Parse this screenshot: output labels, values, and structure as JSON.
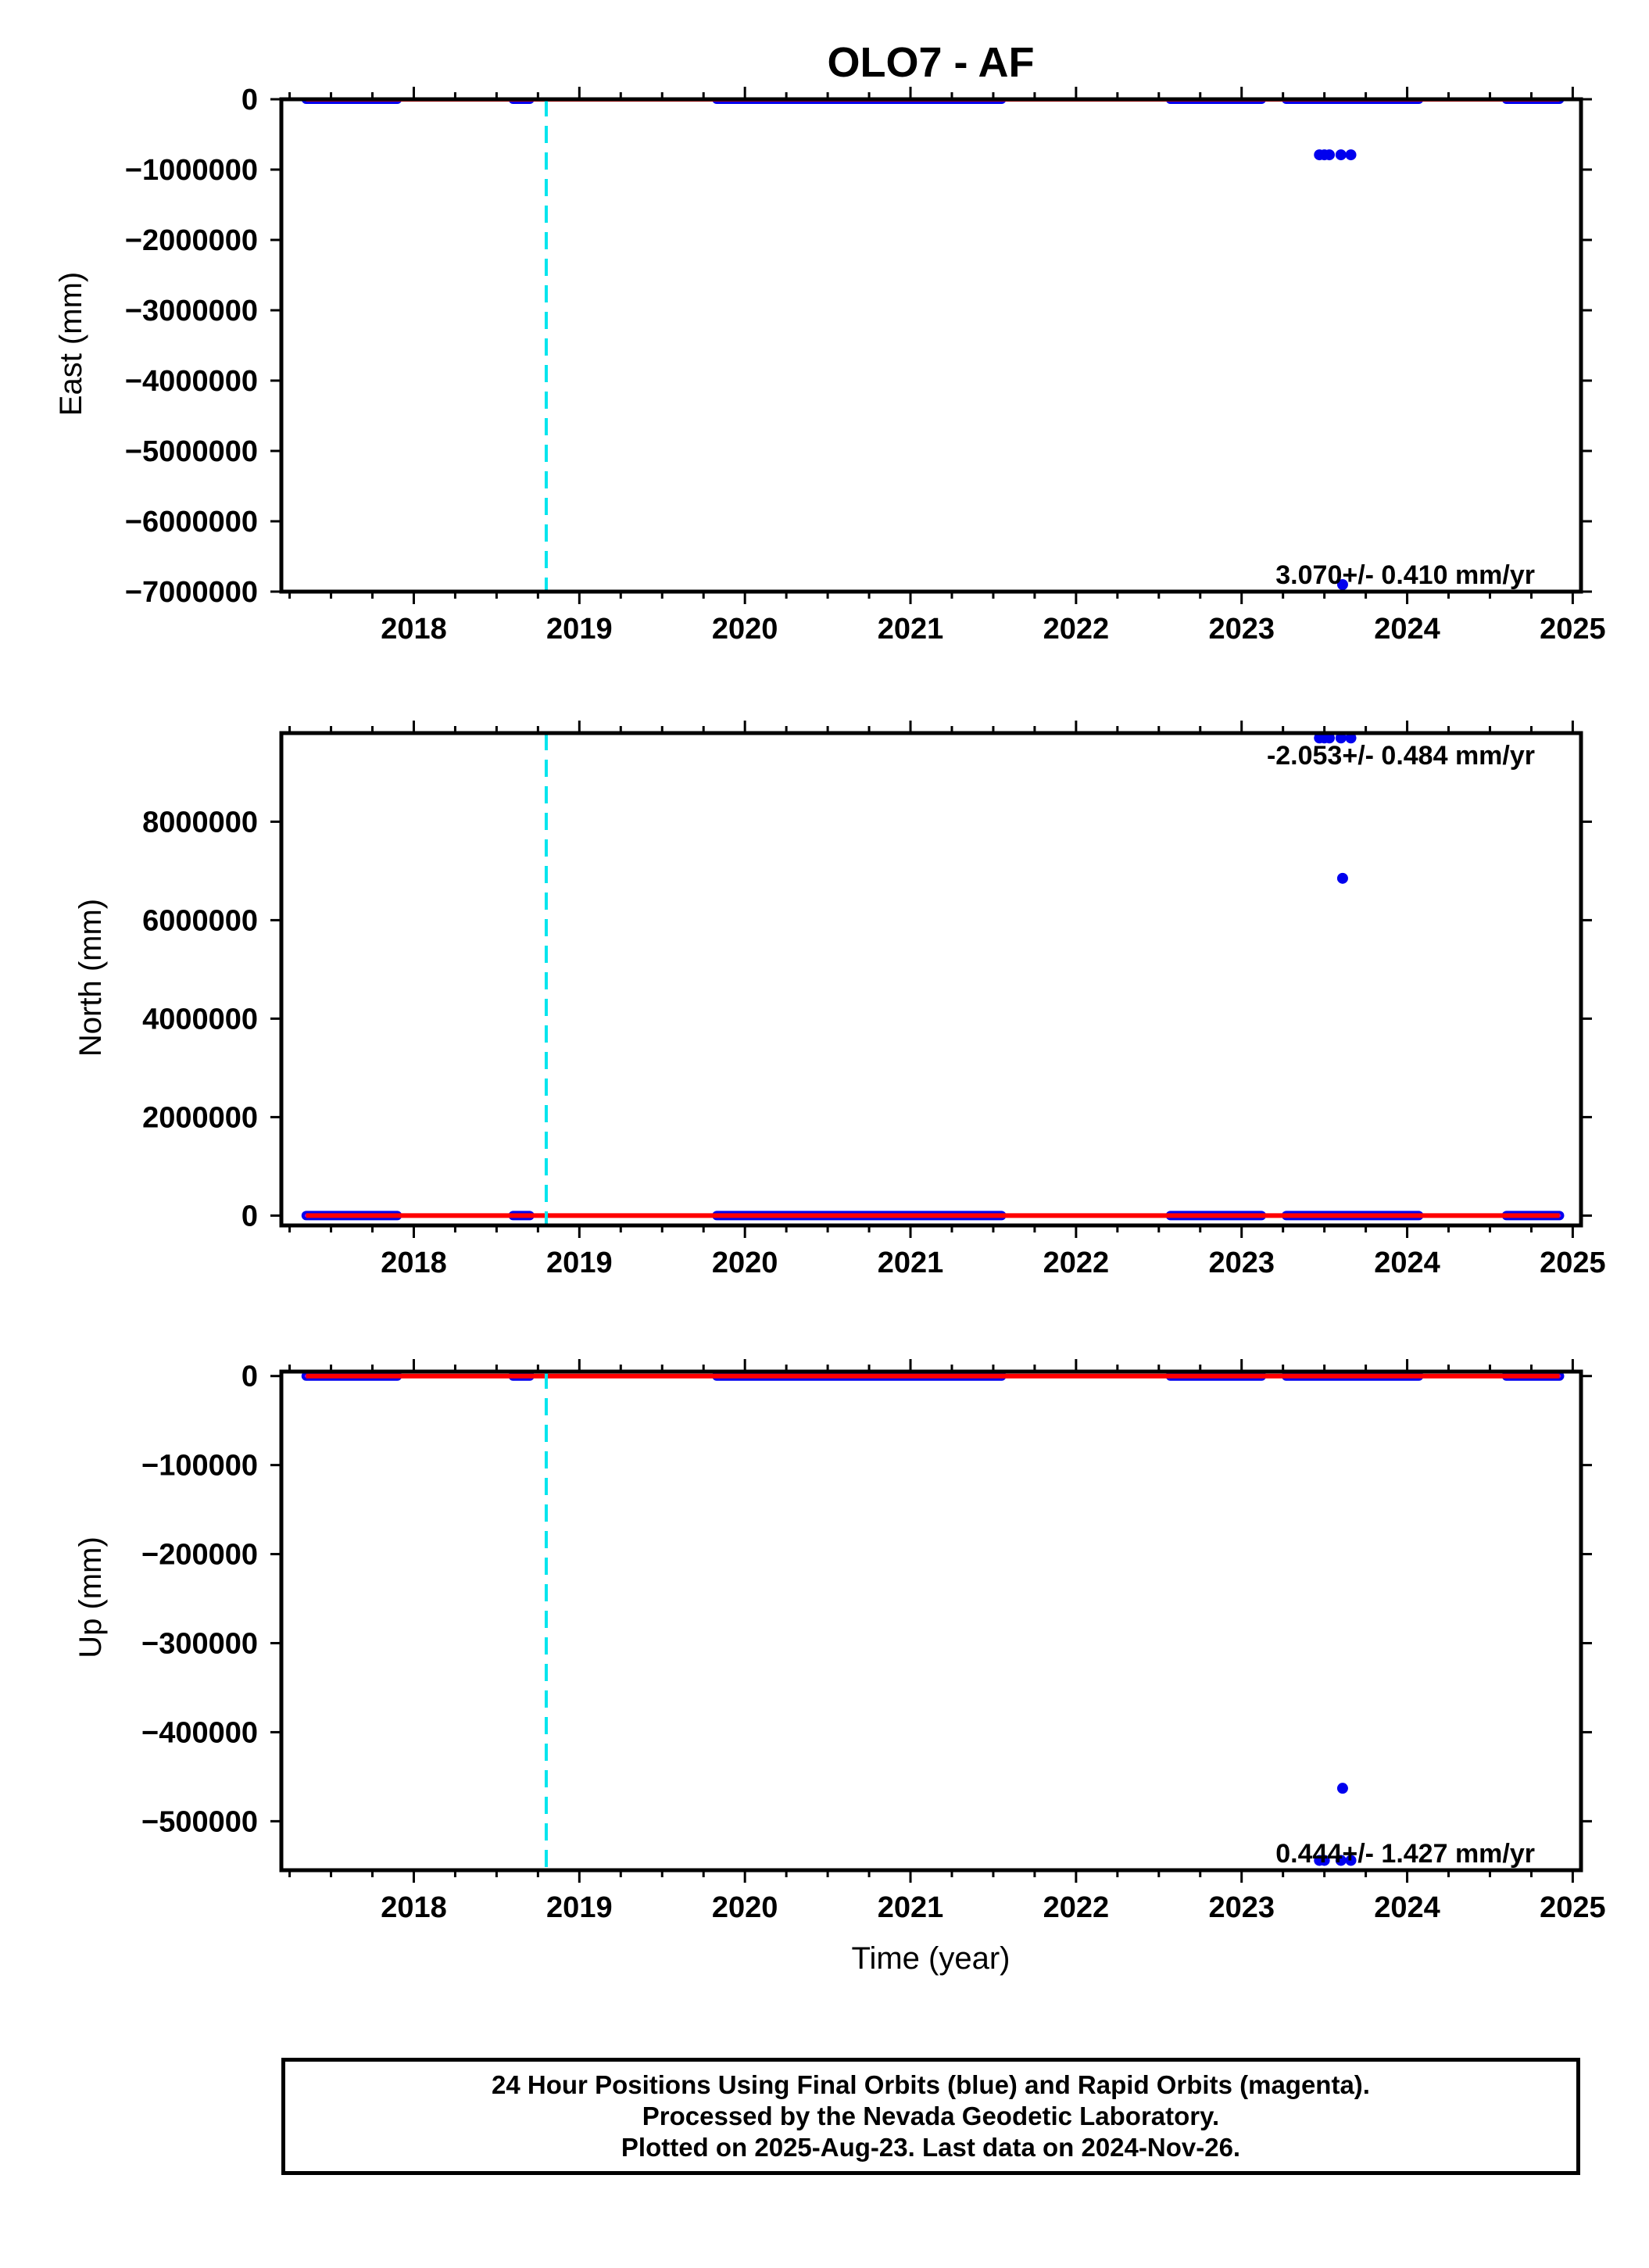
{
  "chart_data": {
    "title": "OLO7 - AF",
    "xlabel": "Time (year)",
    "xlim": [
      2017.2,
      2025.05
    ],
    "x_ticks": [
      "2018",
      "2019",
      "2020",
      "2021",
      "2022",
      "2023",
      "2024",
      "2025"
    ],
    "x_tick_values": [
      2018,
      2019,
      2020,
      2021,
      2022,
      2023,
      2024,
      2025
    ],
    "equipment_change_line": {
      "x": 2018.8,
      "color": "#00e5ee",
      "style": "dashed"
    },
    "colors": {
      "final_orbits": "#0000ee",
      "rapid_orbits": "#cc00cc",
      "model": "#ff0000"
    },
    "data_segments": [
      [
        2017.35,
        2017.9
      ],
      [
        2018.6,
        2018.7
      ],
      [
        2019.83,
        2021.55
      ],
      [
        2022.57,
        2023.12
      ],
      [
        2023.27,
        2024.07
      ],
      [
        2024.6,
        2024.92
      ]
    ],
    "model_line": [
      [
        2017.35,
        0
      ],
      [
        2019.3,
        0
      ],
      [
        2019.6,
        0
      ],
      [
        2021.5,
        0
      ],
      [
        2022.2,
        0
      ],
      [
        2023.0,
        0
      ],
      [
        2024.92,
        0
      ]
    ],
    "panels": [
      {
        "type": "scatter",
        "ylabel": "East (mm)",
        "ylim": [
          -7000000,
          0
        ],
        "y_ticks": [
          "0",
          "−1000000",
          "−2000000",
          "−3000000",
          "−4000000",
          "−5000000",
          "−6000000",
          "−7000000"
        ],
        "y_tick_values": [
          0,
          -1000000,
          -2000000,
          -3000000,
          -4000000,
          -5000000,
          -6000000,
          -7000000
        ],
        "rate": "3.070+/- 0.410 mm/yr",
        "outliers": [
          [
            2023.47,
            -790000
          ],
          [
            2023.5,
            -790000
          ],
          [
            2023.53,
            -790000
          ],
          [
            2023.6,
            -790000
          ],
          [
            2023.66,
            -790000
          ],
          [
            2023.61,
            -6900000
          ]
        ]
      },
      {
        "type": "scatter",
        "ylabel": "North (mm)",
        "ylim": [
          -200000,
          9800000
        ],
        "y_ticks": [
          "0",
          "2000000",
          "4000000",
          "6000000",
          "8000000"
        ],
        "y_tick_values": [
          0,
          2000000,
          4000000,
          6000000,
          8000000
        ],
        "rate": "-2.053+/- 0.484 mm/yr",
        "outliers": [
          [
            2023.47,
            9700000
          ],
          [
            2023.5,
            9700000
          ],
          [
            2023.53,
            9700000
          ],
          [
            2023.6,
            9700000
          ],
          [
            2023.66,
            9700000
          ],
          [
            2023.61,
            6850000
          ]
        ]
      },
      {
        "type": "scatter",
        "ylabel": "Up (mm)",
        "ylim": [
          -555000,
          5000
        ],
        "y_ticks": [
          "0",
          "−100000",
          "−200000",
          "−300000",
          "−400000",
          "−500000"
        ],
        "y_tick_values": [
          0,
          -100000,
          -200000,
          -300000,
          -400000,
          -500000
        ],
        "rate": "0.444+/- 1.427 mm/yr",
        "outliers": [
          [
            2023.47,
            -544000
          ],
          [
            2023.5,
            -544000
          ],
          [
            2023.6,
            -544000
          ],
          [
            2023.66,
            -544000
          ],
          [
            2023.61,
            -463000
          ]
        ]
      }
    ]
  },
  "footer": {
    "line1": "24 Hour Positions Using Final Orbits (blue) and Rapid Orbits (magenta).",
    "line2": "Processed by the Nevada Geodetic Laboratory.",
    "line3": "Plotted on 2025-Aug-23. Last data on 2024-Nov-26."
  }
}
